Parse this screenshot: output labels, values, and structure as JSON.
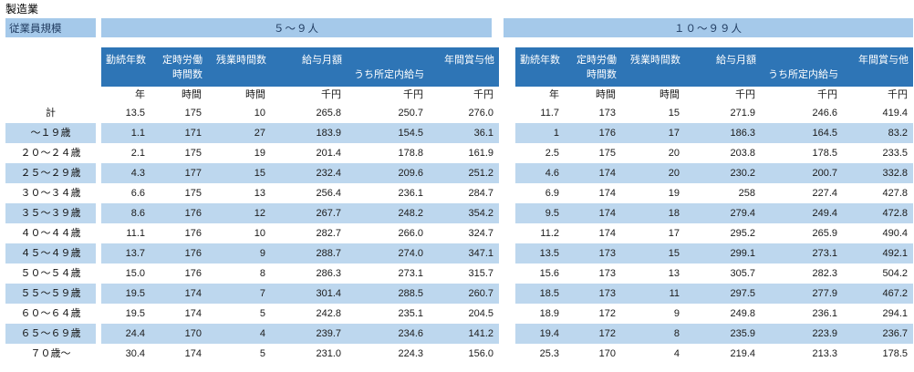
{
  "title": "製造業",
  "size_header": "従業員規模",
  "groups": [
    {
      "label": "５～９人"
    },
    {
      "label": "１０～９９人"
    }
  ],
  "columns": [
    {
      "id": "tenure-years",
      "line1": "勤続年数",
      "line2": "",
      "unit": "年"
    },
    {
      "id": "scheduled-hours",
      "line1": "定時労働",
      "line2": "時間数",
      "unit": "時間"
    },
    {
      "id": "overtime-hours",
      "line1": "残業時間数",
      "line2": "",
      "unit": "時間"
    },
    {
      "id": "monthly-salary",
      "line1": "給与月額",
      "line2": "",
      "unit": "千円"
    },
    {
      "id": "scheduled-salary",
      "line1": "",
      "line2": "うち所定内給与",
      "unit": "千円"
    },
    {
      "id": "annual-bonus",
      "line1": "年間賞与他",
      "line2": "",
      "unit": "千円"
    }
  ],
  "rows": [
    {
      "label": "計",
      "left": [
        "13.5",
        "175",
        "10",
        "265.8",
        "250.7",
        "276.0"
      ],
      "right": [
        "11.7",
        "173",
        "15",
        "271.9",
        "246.6",
        "419.4"
      ]
    },
    {
      "label": "～１９歳",
      "left": [
        "1.1",
        "171",
        "27",
        "183.9",
        "154.5",
        "36.1"
      ],
      "right": [
        "1",
        "176",
        "17",
        "186.3",
        "164.5",
        "83.2"
      ]
    },
    {
      "label": "２０～２４歳",
      "left": [
        "2.1",
        "175",
        "19",
        "201.4",
        "178.8",
        "161.9"
      ],
      "right": [
        "2.5",
        "175",
        "20",
        "203.8",
        "178.5",
        "233.5"
      ]
    },
    {
      "label": "２５～２９歳",
      "left": [
        "4.3",
        "177",
        "15",
        "232.4",
        "209.6",
        "251.2"
      ],
      "right": [
        "4.6",
        "174",
        "20",
        "230.2",
        "200.7",
        "332.8"
      ]
    },
    {
      "label": "３０～３４歳",
      "left": [
        "6.6",
        "175",
        "13",
        "256.4",
        "236.1",
        "284.7"
      ],
      "right": [
        "6.9",
        "174",
        "19",
        "258",
        "227.4",
        "427.8"
      ]
    },
    {
      "label": "３５～３９歳",
      "left": [
        "8.6",
        "176",
        "12",
        "267.7",
        "248.2",
        "354.2"
      ],
      "right": [
        "9.5",
        "174",
        "18",
        "279.4",
        "249.4",
        "472.8"
      ]
    },
    {
      "label": "４０～４４歳",
      "left": [
        "11.1",
        "176",
        "10",
        "282.7",
        "266.0",
        "324.7"
      ],
      "right": [
        "11.2",
        "174",
        "17",
        "295.2",
        "265.9",
        "490.4"
      ]
    },
    {
      "label": "４５～４９歳",
      "left": [
        "13.7",
        "176",
        "9",
        "288.7",
        "274.0",
        "347.1"
      ],
      "right": [
        "13.5",
        "173",
        "15",
        "299.1",
        "273.1",
        "492.1"
      ]
    },
    {
      "label": "５０～５４歳",
      "left": [
        "15.0",
        "176",
        "8",
        "286.3",
        "273.1",
        "315.7"
      ],
      "right": [
        "15.6",
        "173",
        "13",
        "305.7",
        "282.3",
        "504.2"
      ]
    },
    {
      "label": "５５～５９歳",
      "left": [
        "19.5",
        "174",
        "7",
        "301.4",
        "288.5",
        "260.7"
      ],
      "right": [
        "18.5",
        "173",
        "11",
        "297.5",
        "277.9",
        "467.2"
      ]
    },
    {
      "label": "６０～６４歳",
      "left": [
        "19.5",
        "174",
        "5",
        "242.8",
        "235.1",
        "204.5"
      ],
      "right": [
        "18.9",
        "172",
        "9",
        "249.8",
        "236.1",
        "294.1"
      ]
    },
    {
      "label": "６５～６９歳",
      "left": [
        "24.4",
        "170",
        "4",
        "239.7",
        "234.6",
        "141.2"
      ],
      "right": [
        "19.4",
        "172",
        "8",
        "235.9",
        "223.9",
        "236.7"
      ]
    },
    {
      "label": "７０歳～",
      "left": [
        "30.4",
        "174",
        "5",
        "231.0",
        "224.3",
        "156.0"
      ],
      "right": [
        "25.3",
        "170",
        "4",
        "219.4",
        "213.3",
        "178.5"
      ]
    }
  ],
  "colors": {
    "header_blue": "#2E75B6",
    "band_blue": "#A5C9EA",
    "stripe_blue": "#BDD7EE"
  }
}
